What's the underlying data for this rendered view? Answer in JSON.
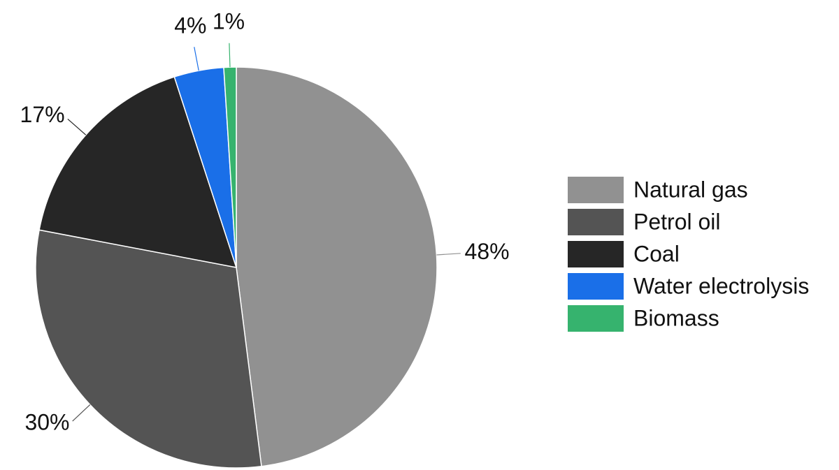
{
  "chart_data": {
    "type": "pie",
    "categories": [
      "Natural gas",
      "Petrol oil",
      "Coal",
      "Water electrolysis",
      "Biomass"
    ],
    "values": [
      48,
      30,
      17,
      4,
      1
    ],
    "value_labels": [
      "48%",
      "30%",
      "17%",
      "4%",
      "1%"
    ],
    "colors": [
      "#919191",
      "#545454",
      "#262626",
      "#1a6fe8",
      "#36b36e"
    ],
    "legend": "right"
  }
}
